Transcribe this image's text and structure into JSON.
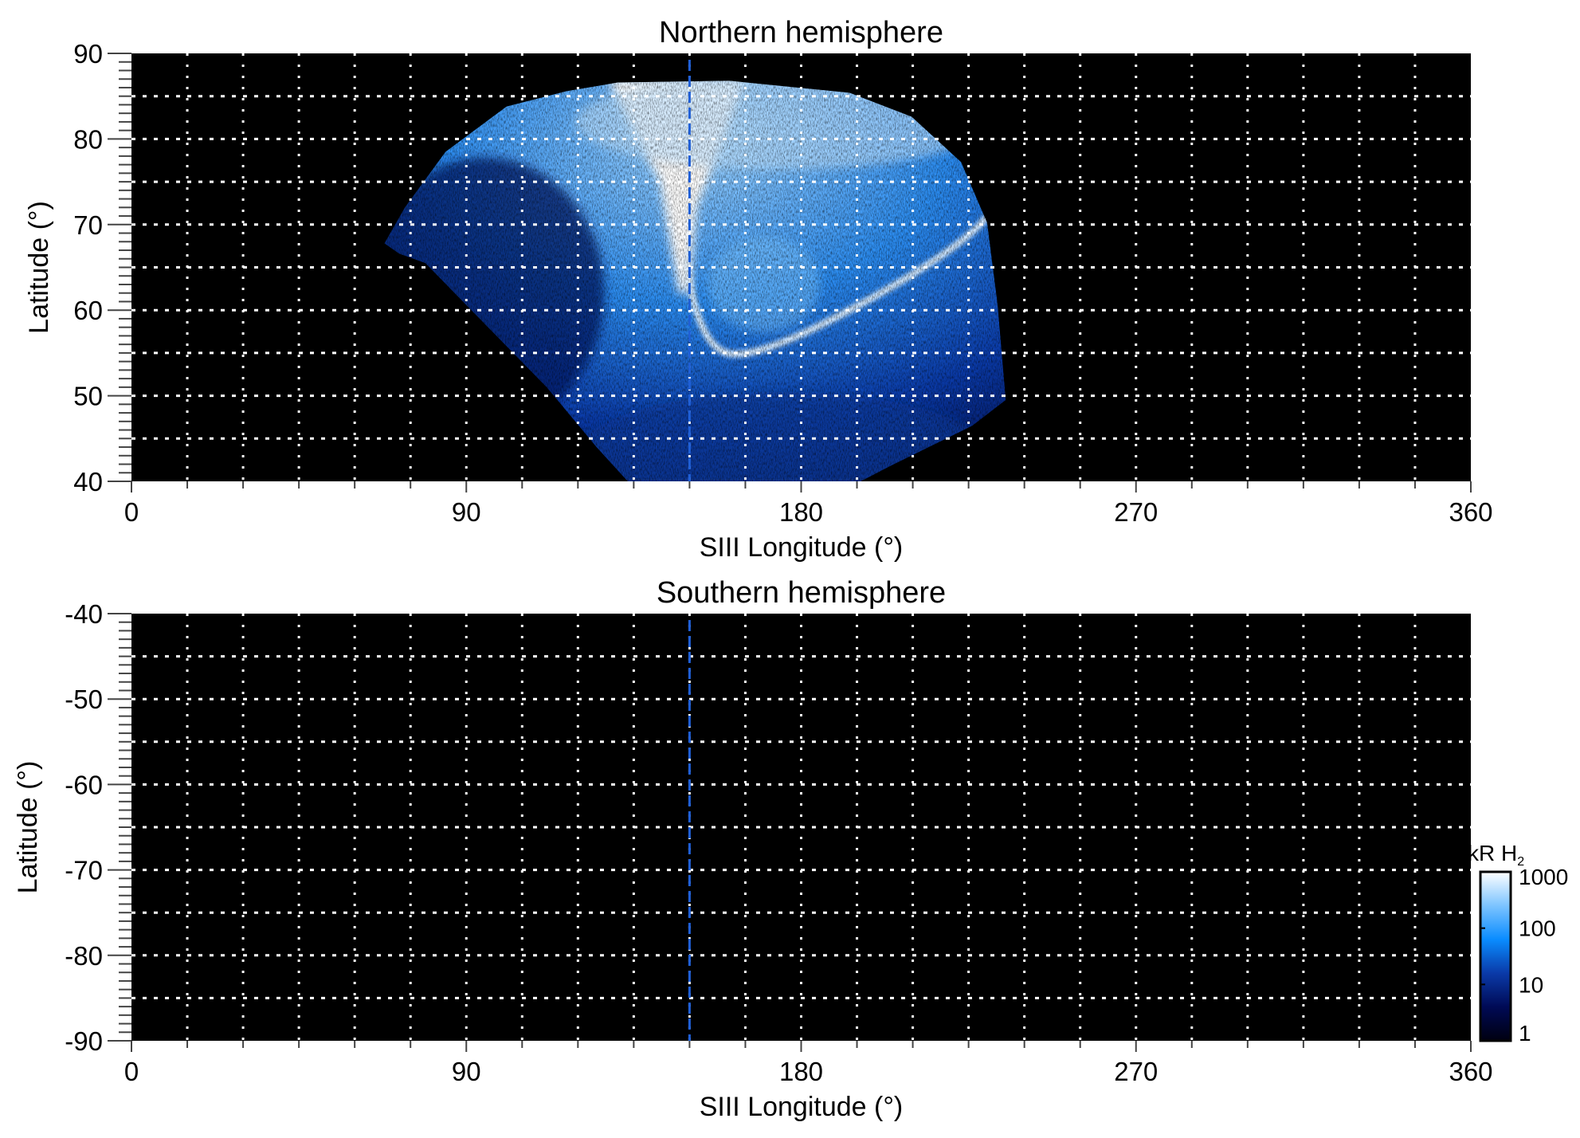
{
  "chart_data": [
    {
      "type": "heatmap",
      "title": "Northern hemisphere",
      "xlabel": "SIII Longitude (°)",
      "ylabel": "Latitude (°)",
      "xlim": [
        0,
        360
      ],
      "ylim": [
        40,
        90
      ],
      "xticks": [
        "0",
        "90",
        "180",
        "270",
        "360"
      ],
      "yticks": [
        "40",
        "50",
        "60",
        "70",
        "80",
        "90"
      ],
      "grid": true,
      "grid_spacing_deg": {
        "longitude": 15,
        "latitude": 5
      },
      "reference_longitude": 150,
      "reference_line_color": "#1f5fd6",
      "has_emission": true
    },
    {
      "type": "heatmap",
      "title": "Southern hemisphere",
      "xlabel": "SIII Longitude (°)",
      "ylabel": "Latitude (°)",
      "xlim": [
        0,
        360
      ],
      "ylim": [
        -90,
        -40
      ],
      "xticks": [
        "0",
        "90",
        "180",
        "270",
        "360"
      ],
      "yticks": [
        "-90",
        "-80",
        "-70",
        "-60",
        "-50",
        "-40"
      ],
      "grid": true,
      "grid_spacing_deg": {
        "longitude": 15,
        "latitude": 5
      },
      "reference_longitude": 150,
      "reference_line_color": "#1f5fd6",
      "has_emission": false
    }
  ],
  "colorbar": {
    "label": "kR H",
    "label_subscript": "2",
    "scale": "log",
    "range": [
      1,
      1000
    ],
    "ticks": [
      "1",
      "10",
      "100",
      "1000"
    ],
    "colors": [
      "#000010",
      "#000a55",
      "#0a3aa8",
      "#0a8cff",
      "#7cc4ff",
      "#ffffff"
    ]
  }
}
